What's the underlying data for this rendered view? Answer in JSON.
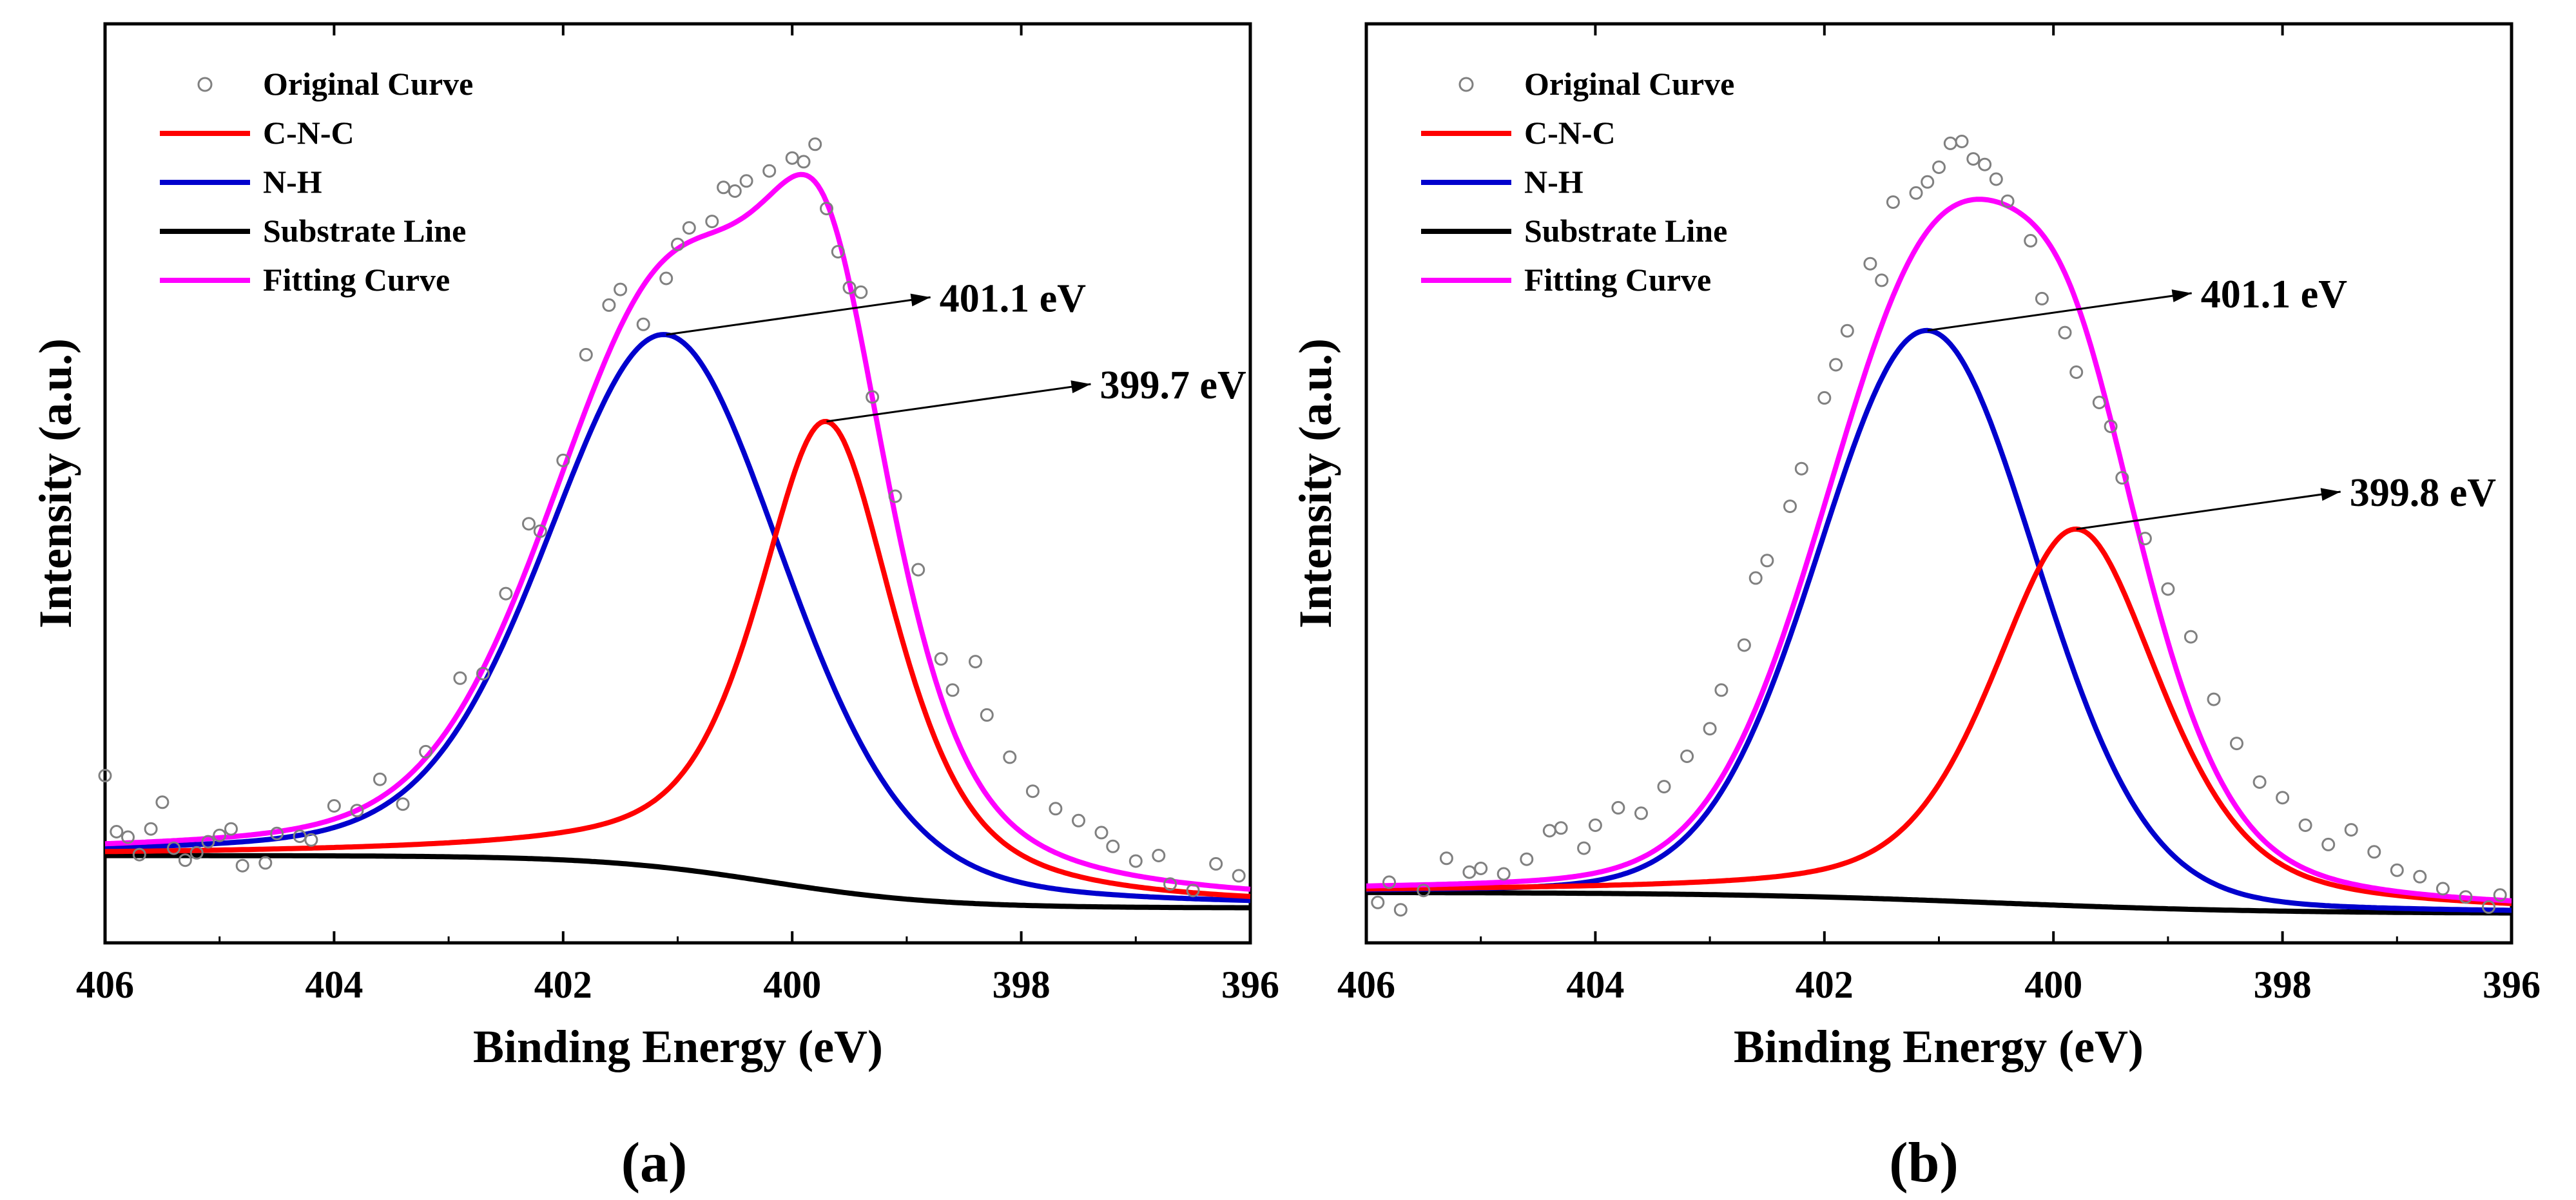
{
  "colors": {
    "original": "#808080",
    "cnc": "#ff0000",
    "nh": "#0000cd",
    "substrate": "#000000",
    "fitting": "#ff00ff"
  },
  "chart_data": [
    {
      "type": "line",
      "title": "",
      "panel_label": "(a)",
      "xlabel": "Binding Energy (eV)",
      "ylabel": "Intensity (a.u.)",
      "xlim": [
        406,
        396
      ],
      "ylim": [
        0,
        100
      ],
      "x_ticks": [
        "406",
        "404",
        "402",
        "400",
        "398",
        "396"
      ],
      "legend": [
        "Original Curve",
        "C-N-C",
        "N-H",
        "Substrate Line",
        "Fitting Curve"
      ],
      "legend_position": "top-left",
      "background": {
        "a": 9.5,
        "b": 3.8,
        "center": 400.2,
        "width": 0.75
      },
      "series": [
        {
          "name": "C-N-C",
          "shape": "pv",
          "center": 399.7,
          "amplitude": 51,
          "fwhm": 1.45,
          "eta": 0.65
        },
        {
          "name": "N-H",
          "shape": "pv",
          "center": 401.1,
          "amplitude": 58,
          "fwhm": 2.45,
          "eta": 0.25
        }
      ],
      "original_points": [
        [
          406.0,
          18.2
        ],
        [
          405.9,
          12.1
        ],
        [
          405.8,
          11.5
        ],
        [
          405.7,
          9.6
        ],
        [
          405.6,
          12.4
        ],
        [
          405.5,
          15.3
        ],
        [
          405.4,
          10.3
        ],
        [
          405.3,
          9.0
        ],
        [
          405.2,
          9.8
        ],
        [
          405.1,
          11.0
        ],
        [
          405.0,
          11.7
        ],
        [
          404.9,
          12.4
        ],
        [
          404.8,
          8.4
        ],
        [
          404.6,
          8.7
        ],
        [
          404.5,
          11.9
        ],
        [
          404.3,
          11.6
        ],
        [
          404.2,
          11.2
        ],
        [
          404.0,
          14.9
        ],
        [
          403.8,
          14.4
        ],
        [
          403.6,
          17.8
        ],
        [
          403.4,
          15.1
        ],
        [
          403.2,
          20.8
        ],
        [
          402.9,
          28.8
        ],
        [
          402.7,
          29.3
        ],
        [
          402.5,
          38.0
        ],
        [
          402.3,
          45.6
        ],
        [
          402.2,
          44.8
        ],
        [
          402.0,
          52.5
        ],
        [
          401.8,
          64.0
        ],
        [
          401.6,
          69.4
        ],
        [
          401.5,
          71.1
        ],
        [
          401.3,
          67.3
        ],
        [
          401.1,
          72.3
        ],
        [
          401.0,
          76.0
        ],
        [
          400.9,
          77.8
        ],
        [
          400.7,
          78.5
        ],
        [
          400.6,
          82.2
        ],
        [
          400.5,
          81.8
        ],
        [
          400.4,
          82.9
        ],
        [
          400.2,
          84.0
        ],
        [
          400.0,
          85.4
        ],
        [
          399.9,
          85.0
        ],
        [
          399.8,
          86.9
        ],
        [
          399.7,
          79.9
        ],
        [
          399.6,
          75.2
        ],
        [
          399.5,
          71.3
        ],
        [
          399.4,
          70.8
        ],
        [
          399.3,
          59.4
        ],
        [
          399.1,
          48.6
        ],
        [
          398.9,
          40.6
        ],
        [
          398.7,
          30.9
        ],
        [
          398.6,
          27.5
        ],
        [
          398.4,
          30.6
        ],
        [
          398.3,
          24.8
        ],
        [
          398.1,
          20.2
        ],
        [
          397.9,
          16.5
        ],
        [
          397.7,
          14.6
        ],
        [
          397.5,
          13.3
        ],
        [
          397.3,
          12.0
        ],
        [
          397.2,
          10.5
        ],
        [
          397.0,
          8.9
        ],
        [
          396.8,
          9.5
        ],
        [
          396.7,
          6.4
        ],
        [
          396.5,
          5.7
        ],
        [
          396.3,
          8.6
        ],
        [
          396.1,
          7.3
        ]
      ],
      "annotations": [
        {
          "text": "401.1 eV",
          "x": 401.1,
          "target": "N-H"
        },
        {
          "text": "399.7 eV",
          "x": 399.7,
          "target": "C-N-C"
        }
      ]
    },
    {
      "type": "line",
      "title": "",
      "panel_label": "(b)",
      "xlabel": "Binding Energy (eV)",
      "ylabel": "Intensity (a.u.)",
      "xlim": [
        406,
        396
      ],
      "ylim": [
        0,
        100
      ],
      "x_ticks": [
        "406",
        "404",
        "402",
        "400",
        "398",
        "396"
      ],
      "legend": [
        "Original Curve",
        "C-N-C",
        "N-H",
        "Substrate Line",
        "Fitting Curve"
      ],
      "legend_position": "top-left",
      "background": {
        "a": 5.5,
        "b": 3.2,
        "center": 400.5,
        "width": 1.2
      },
      "series": [
        {
          "name": "C-N-C",
          "shape": "pv",
          "center": 399.8,
          "amplitude": 41,
          "fwhm": 1.75,
          "eta": 0.5
        },
        {
          "name": "N-H",
          "shape": "pv",
          "center": 401.1,
          "amplitude": 62,
          "fwhm": 2.25,
          "eta": 0.1
        }
      ],
      "original_points": [
        [
          405.9,
          4.4
        ],
        [
          405.8,
          6.6
        ],
        [
          405.7,
          3.6
        ],
        [
          405.5,
          5.7
        ],
        [
          405.3,
          9.2
        ],
        [
          405.1,
          7.7
        ],
        [
          405.0,
          8.1
        ],
        [
          404.8,
          7.5
        ],
        [
          404.6,
          9.1
        ],
        [
          404.4,
          12.2
        ],
        [
          404.3,
          12.5
        ],
        [
          404.1,
          10.3
        ],
        [
          404.0,
          12.8
        ],
        [
          403.8,
          14.7
        ],
        [
          403.6,
          14.1
        ],
        [
          403.4,
          17.0
        ],
        [
          403.2,
          20.3
        ],
        [
          403.0,
          23.3
        ],
        [
          402.9,
          27.5
        ],
        [
          402.7,
          32.4
        ],
        [
          402.6,
          39.7
        ],
        [
          402.5,
          41.6
        ],
        [
          402.3,
          47.5
        ],
        [
          402.2,
          51.6
        ],
        [
          402.0,
          59.3
        ],
        [
          401.9,
          62.9
        ],
        [
          401.8,
          66.6
        ],
        [
          401.6,
          73.9
        ],
        [
          401.5,
          72.1
        ],
        [
          401.4,
          80.6
        ],
        [
          401.2,
          81.6
        ],
        [
          401.1,
          82.8
        ],
        [
          401.0,
          84.4
        ],
        [
          400.9,
          87.0
        ],
        [
          400.8,
          87.2
        ],
        [
          400.7,
          85.3
        ],
        [
          400.6,
          84.7
        ],
        [
          400.5,
          83.1
        ],
        [
          400.4,
          80.7
        ],
        [
          400.2,
          76.4
        ],
        [
          400.1,
          70.1
        ],
        [
          399.9,
          66.4
        ],
        [
          399.8,
          62.1
        ],
        [
          399.6,
          58.8
        ],
        [
          399.5,
          56.2
        ],
        [
          399.4,
          50.6
        ],
        [
          399.2,
          44.0
        ],
        [
          399.0,
          38.5
        ],
        [
          398.8,
          33.3
        ],
        [
          398.6,
          26.5
        ],
        [
          398.4,
          21.7
        ],
        [
          398.2,
          17.5
        ],
        [
          398.0,
          15.8
        ],
        [
          397.8,
          12.8
        ],
        [
          397.6,
          10.7
        ],
        [
          397.4,
          12.3
        ],
        [
          397.2,
          9.9
        ],
        [
          397.0,
          7.9
        ],
        [
          396.8,
          7.2
        ],
        [
          396.6,
          5.9
        ],
        [
          396.4,
          5.0
        ],
        [
          396.2,
          3.9
        ],
        [
          396.1,
          5.2
        ]
      ],
      "annotations": [
        {
          "text": "401.1 eV",
          "x": 401.1,
          "target": "N-H"
        },
        {
          "text": "399.8 eV",
          "x": 399.8,
          "target": "C-N-C"
        }
      ]
    }
  ]
}
